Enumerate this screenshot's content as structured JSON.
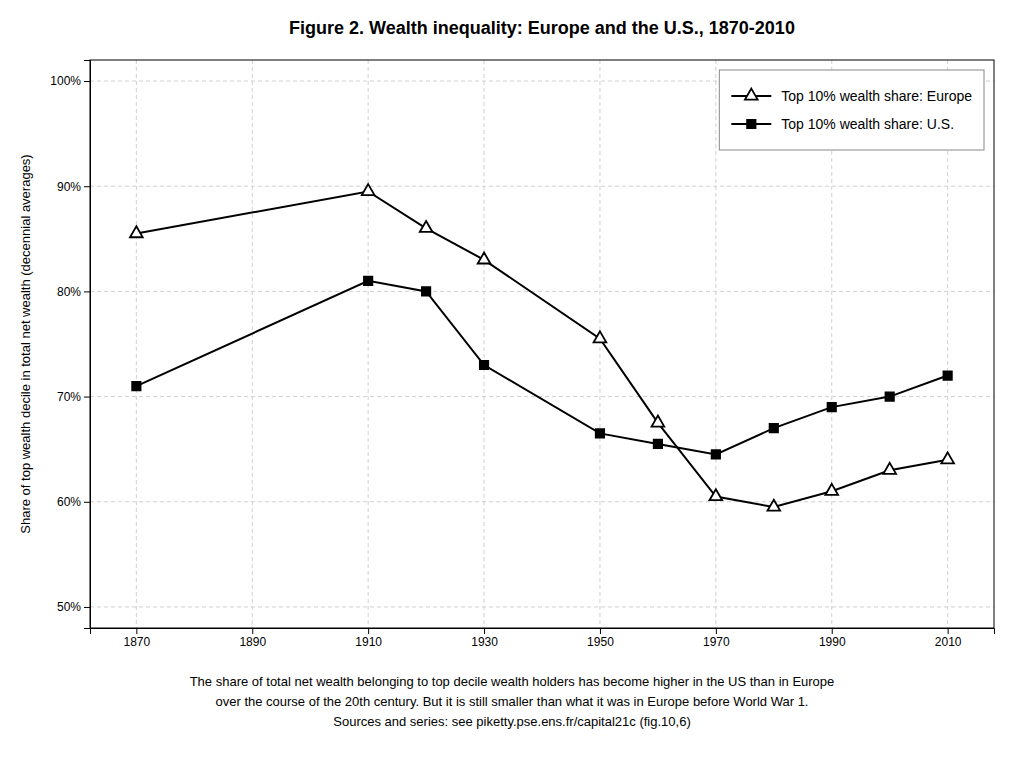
{
  "chart_data": {
    "type": "line",
    "title": "Figure 2. Wealth inequality: Europe and the U.S., 1870-2010",
    "ylabel": "Share of top wealth decile in total net wealth (decennial averages)",
    "x": [
      1870,
      1910,
      1920,
      1930,
      1950,
      1960,
      1970,
      1980,
      1990,
      2000,
      2010
    ],
    "series": [
      {
        "name": "Top 10% wealth share: Europe",
        "color": "#000000",
        "marker": "triangle-open",
        "values": [
          0.855,
          0.895,
          0.86,
          0.83,
          0.755,
          0.675,
          0.605,
          0.595,
          0.61,
          0.63,
          0.64
        ]
      },
      {
        "name": "Top 10% wealth share: U.S.",
        "color": "#000000",
        "marker": "square",
        "values": [
          0.71,
          0.81,
          0.8,
          0.73,
          0.665,
          0.655,
          0.645,
          0.67,
          0.69,
          0.7,
          0.72
        ]
      }
    ],
    "xlim": [
      1862,
      2018
    ],
    "xticks": [
      1870,
      1890,
      1910,
      1930,
      1950,
      1970,
      1990,
      2010
    ],
    "ylim": [
      0.48,
      1.02
    ],
    "yticks": [
      {
        "value": 0.5,
        "label": "50%"
      },
      {
        "value": 0.6,
        "label": "60%"
      },
      {
        "value": 0.7,
        "label": "70%"
      },
      {
        "value": 0.8,
        "label": "80%"
      },
      {
        "value": 0.9,
        "label": "90%"
      },
      {
        "value": 1.0,
        "label": "100%"
      }
    ],
    "grid": true,
    "legend": "upper right",
    "annotations": [
      "The share of total net wealth belonging to top decile wealth holders has become higher in the US than in Europe",
      "over the course of the 20th century. But it is still smaller than what it was in Europe before World War 1.",
      "Sources and series:  see piketty.pse.ens.fr/capital21c  (fig.10,6)"
    ]
  }
}
